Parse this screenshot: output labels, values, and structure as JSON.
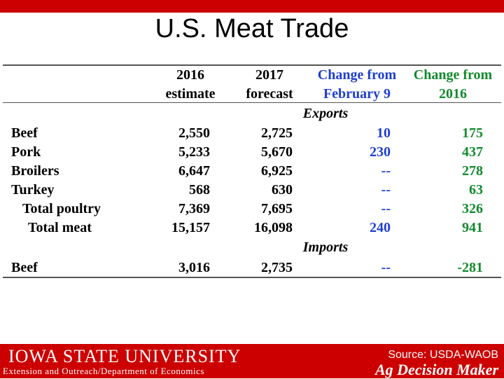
{
  "slide": {
    "title": "U.S. Meat Trade"
  },
  "table": {
    "headers": {
      "c1": [
        "2016",
        "estimate"
      ],
      "c2": [
        "2017",
        "forecast"
      ],
      "c3": [
        "Change from",
        "February 9"
      ],
      "c4": [
        "Change from",
        "2016"
      ]
    },
    "sections": {
      "exports": "Exports",
      "imports": "Imports"
    },
    "export_rows": [
      {
        "label": "Beef",
        "v2016": "2,550",
        "v2017": "2,725",
        "chg_feb": "10",
        "chg_2016": "175"
      },
      {
        "label": "Pork",
        "v2016": "5,233",
        "v2017": "5,670",
        "chg_feb": "230",
        "chg_2016": "437"
      },
      {
        "label": "Broilers",
        "v2016": "6,647",
        "v2017": "6,925",
        "chg_feb": "--",
        "chg_2016": "278"
      },
      {
        "label": "Turkey",
        "v2016": "568",
        "v2017": "630",
        "chg_feb": "--",
        "chg_2016": "63"
      },
      {
        "label": "Total poultry",
        "v2016": "7,369",
        "v2017": "7,695",
        "chg_feb": "--",
        "chg_2016": "326"
      },
      {
        "label": "Total meat",
        "v2016": "15,157",
        "v2017": "16,098",
        "chg_feb": "240",
        "chg_2016": "941"
      }
    ],
    "import_rows": [
      {
        "label": "Beef",
        "v2016": "3,016",
        "v2017": "2,735",
        "chg_feb": "--",
        "chg_2016": "-281"
      }
    ]
  },
  "footer": {
    "university": "IOWA STATE UNIVERSITY",
    "department": "Extension and Outreach/Department of Economics",
    "source": "Source: USDA-WAOB",
    "brand": "Ag Decision Maker"
  },
  "colors": {
    "accent_red": "#cc0000",
    "header_blue": "#1f3fd0",
    "header_green": "#138a2e"
  }
}
